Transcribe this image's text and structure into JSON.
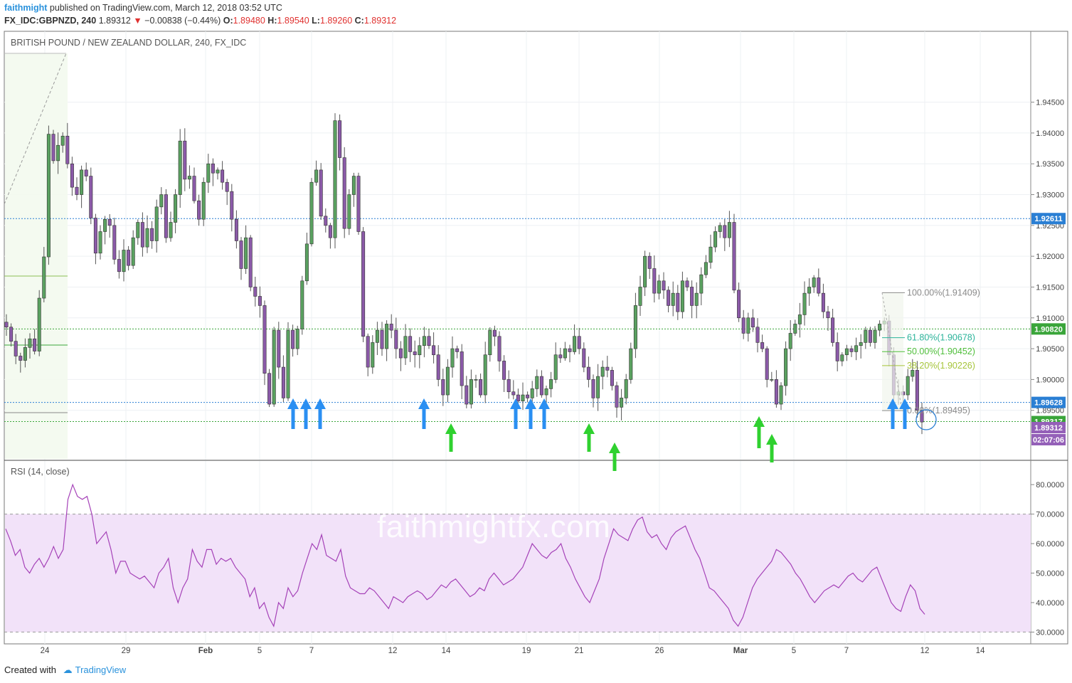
{
  "header": {
    "user": "faithmight",
    "published": "published on TradingView.com, March 12, 2018 03:52 UTC",
    "symbol": "FX_IDC:GBPNZD, 240",
    "last": "1.89312",
    "change": "−0.00838 (−0.44%)",
    "o_label": "O:",
    "o": "1.89480",
    "h_label": "H:",
    "h": "1.89540",
    "l_label": "L:",
    "l": "1.89260",
    "c_label": "C:",
    "c": "1.89312"
  },
  "chart_title": "BRITISH POUND / NEW ZEALAND DOLLAR, 240, FX_IDC",
  "rsi_title": "RSI (14, close)",
  "watermark": "faithmightfx.com",
  "footer": {
    "created_with": "Created with",
    "brand": "TradingView"
  },
  "colors": {
    "up": "#5aa160",
    "down": "#8b5aa8",
    "rsi_band": "#f2e2f9",
    "rsi_line": "#a542b8",
    "accent": "#2a92dc"
  },
  "chart_data": [
    {
      "type": "candlestick",
      "title": "BRITISH POUND / NEW ZEALAND DOLLAR, 240, FX_IDC",
      "ylim": [
        1.887,
        1.9565
      ],
      "y_ticks": [
        "1.94500",
        "1.94000",
        "1.93500",
        "1.93000",
        "1.92500",
        "1.92000",
        "1.91500",
        "1.91000",
        "1.90500",
        "1.90000",
        "1.89500"
      ],
      "x_ticks": [
        "24",
        "29",
        "Feb",
        "5",
        "7",
        "12",
        "14",
        "19",
        "21",
        "26",
        "Mar",
        "5",
        "7",
        "12",
        "14"
      ],
      "price_labels": [
        {
          "text": "1.92611",
          "value": 1.92611,
          "color": "#2a7fd4"
        },
        {
          "text": "1.90820",
          "value": 1.9082,
          "color": "#3aa53a"
        },
        {
          "text": "1.89628",
          "value": 1.89628,
          "color": "#2a7fd4"
        },
        {
          "text": "1.89317",
          "value": 1.89317,
          "color": "#3aa53a"
        },
        {
          "text": "1.89312",
          "value": 1.89312,
          "color": "#9460b8"
        },
        {
          "text": "02:07:06",
          "value": 1.8885,
          "color": "#9460b8"
        }
      ],
      "fibonacci": [
        {
          "label": "100.00%(1.91409)",
          "value": 1.91409,
          "color": "#8a8a8a"
        },
        {
          "label": "61.80%(1.90678)",
          "value": 1.90678,
          "color": "#2bb39a"
        },
        {
          "label": "50.00%(1.90452)",
          "value": 1.90452,
          "color": "#4fbf3a"
        },
        {
          "label": "38.20%(1.90226)",
          "value": 1.90226,
          "color": "#a6c53a"
        },
        {
          "label": "0.00%(1.89495)",
          "value": 1.89495,
          "color": "#8a8a8a"
        }
      ],
      "arrows": {
        "blue_up": [
          "Feb 6",
          "Feb 6",
          "Feb 7",
          "Feb 13",
          "Feb 18",
          "Feb 19",
          "Feb 20",
          "Mar 9",
          "Mar 10"
        ],
        "green_up": [
          "Feb 14",
          "Feb 21",
          "Feb 22",
          "Mar 3",
          "Mar 4"
        ]
      },
      "closes": [
        1.9085,
        1.9062,
        1.9038,
        1.9031,
        1.9052,
        1.9066,
        1.9046,
        1.9132,
        1.9199,
        1.9398,
        1.9355,
        1.938,
        1.9395,
        1.935,
        1.9312,
        1.93,
        1.934,
        1.933,
        1.9262,
        1.9205,
        1.924,
        1.926,
        1.925,
        1.9195,
        1.9175,
        1.921,
        1.9185,
        1.923,
        1.9255,
        1.9215,
        1.9245,
        1.9225,
        1.928,
        1.93,
        1.923,
        1.9255,
        1.93,
        1.9387,
        1.9325,
        1.933,
        1.929,
        1.926,
        1.932,
        1.935,
        1.9335,
        1.934,
        1.932,
        1.9305,
        1.926,
        1.9225,
        1.918,
        1.923,
        1.915,
        1.9135,
        1.912,
        1.901,
        1.896,
        1.908,
        1.902,
        1.897,
        1.908,
        1.905,
        1.9082,
        1.916,
        1.922,
        1.932,
        1.934,
        1.9265,
        1.925,
        1.923,
        1.942,
        1.936,
        1.9245,
        1.93,
        1.933,
        1.924,
        1.907,
        1.902,
        1.906,
        1.908,
        1.905,
        1.909,
        1.908,
        1.905,
        1.9035,
        1.907,
        1.9045,
        1.904,
        1.9055,
        1.907,
        1.9055,
        1.904,
        1.9,
        1.8975,
        1.902,
        1.905,
        1.9045,
        1.899,
        1.896,
        1.9,
        1.9,
        1.8975,
        1.904,
        1.908,
        1.907,
        1.903,
        1.9,
        1.898,
        1.8975,
        1.8965,
        1.8975,
        1.897,
        1.8985,
        1.9005,
        1.8975,
        1.8985,
        1.9,
        1.904,
        1.9035,
        1.905,
        1.9045,
        1.907,
        1.905,
        1.902,
        1.9,
        1.897,
        1.9005,
        1.902,
        1.9015,
        1.899,
        1.8955,
        1.897,
        1.9,
        1.905,
        1.912,
        1.915,
        1.92,
        1.918,
        1.914,
        1.916,
        1.9145,
        1.912,
        1.914,
        1.911,
        1.916,
        1.915,
        1.912,
        1.914,
        1.917,
        1.919,
        1.9215,
        1.924,
        1.925,
        1.923,
        1.9255,
        1.9145,
        1.91,
        1.9075,
        1.91,
        1.9085,
        1.906,
        1.905,
        1.9,
        1.9,
        1.896,
        1.899,
        1.905,
        1.9075,
        1.909,
        1.9105,
        1.914,
        1.915,
        1.9165,
        1.914,
        1.911,
        1.91,
        1.906,
        1.903,
        1.904,
        1.905,
        1.9045,
        1.9055,
        1.906,
        1.908,
        1.906,
        1.908,
        1.909,
        1.9095,
        1.904,
        1.8975,
        1.898,
        1.8975,
        1.9005,
        1.9015,
        1.895,
        1.8931
      ]
    },
    {
      "type": "line",
      "title": "RSI (14, close)",
      "ylim": [
        30,
        80
      ],
      "y_ticks": [
        "80.0000",
        "70.0000",
        "60.0000",
        "50.0000",
        "40.0000",
        "30.0000"
      ],
      "bands": [
        30,
        70
      ],
      "values": [
        65,
        61,
        56,
        58,
        52,
        50,
        53,
        55,
        52,
        55,
        59,
        55,
        58,
        75,
        80,
        76,
        75,
        76,
        70,
        60,
        62,
        64,
        58,
        50,
        54,
        54,
        50,
        49,
        48,
        49,
        47,
        45,
        50,
        52,
        55,
        45,
        40,
        45,
        48,
        58,
        54,
        52,
        58,
        58,
        53,
        55,
        54,
        55,
        52,
        50,
        48,
        42,
        45,
        38,
        40,
        35,
        32,
        40,
        38,
        45,
        42,
        44,
        50,
        55,
        60,
        58,
        63,
        56,
        55,
        54,
        58,
        49,
        45,
        44,
        43,
        43,
        45,
        44,
        42,
        40,
        38,
        42,
        41,
        40,
        42,
        43,
        44,
        43,
        41,
        42,
        44,
        46,
        45,
        47,
        48,
        46,
        44,
        42,
        43,
        45,
        44,
        48,
        50,
        48,
        46,
        47,
        48,
        50,
        52,
        56,
        60,
        58,
        56,
        55,
        57,
        58,
        60,
        55,
        52,
        48,
        45,
        42,
        40,
        44,
        48,
        55,
        60,
        65,
        63,
        62,
        61,
        65,
        68,
        69,
        64,
        62,
        63,
        60,
        58,
        62,
        64,
        65,
        66,
        62,
        58,
        55,
        50,
        45,
        44,
        42,
        40,
        38,
        34,
        32,
        35,
        40,
        45,
        48,
        50,
        52,
        54,
        58,
        57,
        55,
        53,
        50,
        48,
        45,
        42,
        40,
        42,
        44,
        45,
        46,
        45,
        47,
        49,
        50,
        48,
        47,
        49,
        51,
        52,
        48,
        44,
        40,
        38,
        37,
        42,
        46,
        44,
        38,
        36
      ]
    }
  ]
}
